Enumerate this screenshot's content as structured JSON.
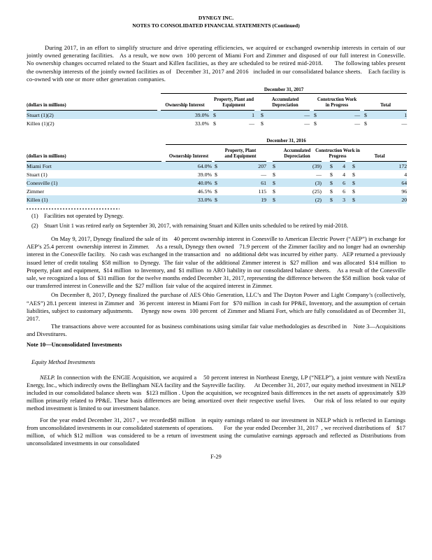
{
  "document": {
    "title": "DYNEGY INC.",
    "subtitle": "NOTES TO CONSOLIDATED FINANCIAL STATEMENTS (Continued)",
    "footer": "F-29"
  },
  "paragraphs": {
    "intro": {
      "runs": [
        {
          "text": "During 2017, in an effort to simplify structure and drive operating efficiencies, we acquired or exchanged ownership interests in certain of our jointly owned generating facilities.   As a result, we now own  100 percent of Miami Fort and Zimmer and disposed of our full interest in Conesville.   No ownership changes occurred related to the Stuart and Killen facilities, as they are scheduled to be retired mid-2018.       The following tables present the ownership interests of the jointly owned facilities as of   December 31, 2017 and 2016   included in our consolidated balance sheets.    Each facility is co-owned with one or more other generation companies."
        }
      ]
    },
    "may9": {
      "runs": [
        {
          "text": "On May 9, 2017, Dynegy finalized the sale of its    40 percent ownership interest in Conesville to American Electric Power (“AEP”) in exchange for AEP’s 25.4 percent  ownership interest in Zimmer.    As a result, Dynegy then owned   71.9 percent  of the Zimmer facility and no longer had an ownership interest in the Conesville facility.   No cash was exchanged in the transaction and   no additional debt was incurred by either party.   AEP returned a previously issued letter of credit totaling  $58 million  to Dynegy.  The fair value of the additional Zimmer interest is  $27 million  and was allocated  $14 million  to Property, plant and equipment,  $14 million  to Inventory, and  $1 million  to ARO liability in our consolidated balance sheets.    As a result of the Conesville sale, we recognized a loss of  $31 million  for the twelve months ended December 31, 2017, representing the difference between the $58 million  book value of our transferred interest in Conesville and the  $27 million  fair value of the acquired interest in Zimmer."
        }
      ]
    },
    "dec8": {
      "runs": [
        {
          "text": "On December 8, 2017, Dynegy finalized the purchase of AES Ohio Generation, LLC’s and The Dayton Power and Light Company’s (collectively, “AES”) 28.1 percent  interest in Zimmer and   36 percent  interest in Miami Fort for   $70 million  in cash for PP&E, Inventory, and the assumption of certain liabilities, subject to customary adjustments.     Dynegy now owns  100 percent  of Zimmer and Miami Fort, which are fully consolidated as of December 31, 2017."
        }
      ]
    },
    "transactions": {
      "runs": [
        {
          "text": "The transactions above were accounted for as business combinations using similar fair value methodologies as described in    Note 3—⁠Acquisitions and Divestitures."
        }
      ]
    },
    "nelp": {
      "runs": [
        {
          "text": "NELP.",
          "italic": true
        },
        {
          "text": " In connection with the ENGIE Acquisition, we acquired a    50 percent interest in Northeast Energy, LP (“NELP”), a joint venture with NextEra Energy, Inc., which indirectly owns the Bellingham NEA facility and the Sayreville facility.      At December 31, 2017, our equity method investment in NELP included in our consolidated balance sheets was   $123 million . Upon the acquisition, we recognized basis differences in the net assets of approximately  $39 million primarily related to PP&E. These basis differences are being amortized over their respective useful lives.    Our risk of loss related to our equity method investment is limited to our investment balance."
        }
      ]
    },
    "year": {
      "runs": [
        {
          "text": "For the year ended December 31, 2017 , we recorded$8 million   in equity earnings related to our investment in NELP which is reflected in Earnings from unconsolidated investments in our consolidated statements of operations.       For  the year ended December 31, 2017  , we received distributions of    $17 million,  of which $12 million  was considered to be a return of investment using the cumulative earnings approach and reflected as Distributions from unconsolidated investments in our consolidated"
        }
      ]
    }
  },
  "headings": {
    "note10": "Note 10—Unconsolidated Investments",
    "equity_method": "Equity Method Investments"
  },
  "footnotes": [
    {
      "marker": "(1)",
      "text": "Facilities not operated by Dynegy."
    },
    {
      "marker": "(2)",
      "text": "Stuart Unit 1 was retired early on September 30, 2017, with remaining Stuart and Killen units scheduled to be retired by mid-2018."
    }
  ],
  "tables": [
    {
      "caption": "December 31, 2017",
      "row_label_header": "(dollars in millions)",
      "currency_symbol": "$",
      "col_headers": [
        "Ownership Interest",
        "Property, Plant and\nEquipment",
        "Accumulated\nDepreciation",
        "Construction Work\nin Progress",
        "Total"
      ],
      "rows": [
        {
          "label": "Stuart (1)(2)",
          "ownership": "39.0%",
          "values": [
            "1",
            "—",
            "—",
            "1"
          ],
          "highlight": true
        },
        {
          "label": "Killen (1)(2)",
          "ownership": "33.0%",
          "values": [
            "—",
            "—",
            "—",
            "—"
          ],
          "highlight": false
        }
      ]
    },
    {
      "caption": "December 31, 2016",
      "row_label_header": "(dollars in millions)",
      "currency_symbol": "$",
      "col_headers": [
        "Ownership Interest",
        "Property, Plant\nand Equipment",
        "Accumulated\nDepreciation",
        "Construction Work in\nProgress",
        "Total"
      ],
      "rows": [
        {
          "label": "Miami Fort",
          "ownership": "64.0%",
          "values": [
            "207",
            "(39)",
            "4",
            "172"
          ],
          "highlight": true
        },
        {
          "label": "Stuart (1)",
          "ownership": "39.0%",
          "values": [
            "—",
            "—",
            "4",
            "4"
          ],
          "highlight": false
        },
        {
          "label": "Conesville (1)",
          "ownership": "40.0%",
          "values": [
            "61",
            "(3)",
            "6",
            "64"
          ],
          "highlight": true
        },
        {
          "label": "Zimmer",
          "ownership": "46.5%",
          "values": [
            "115",
            "(25)",
            "6",
            "96"
          ],
          "highlight": false
        },
        {
          "label": "Killen (1)",
          "ownership": "33.0%",
          "values": [
            "19",
            "(2)",
            "3",
            "20"
          ],
          "highlight": true
        }
      ]
    }
  ]
}
